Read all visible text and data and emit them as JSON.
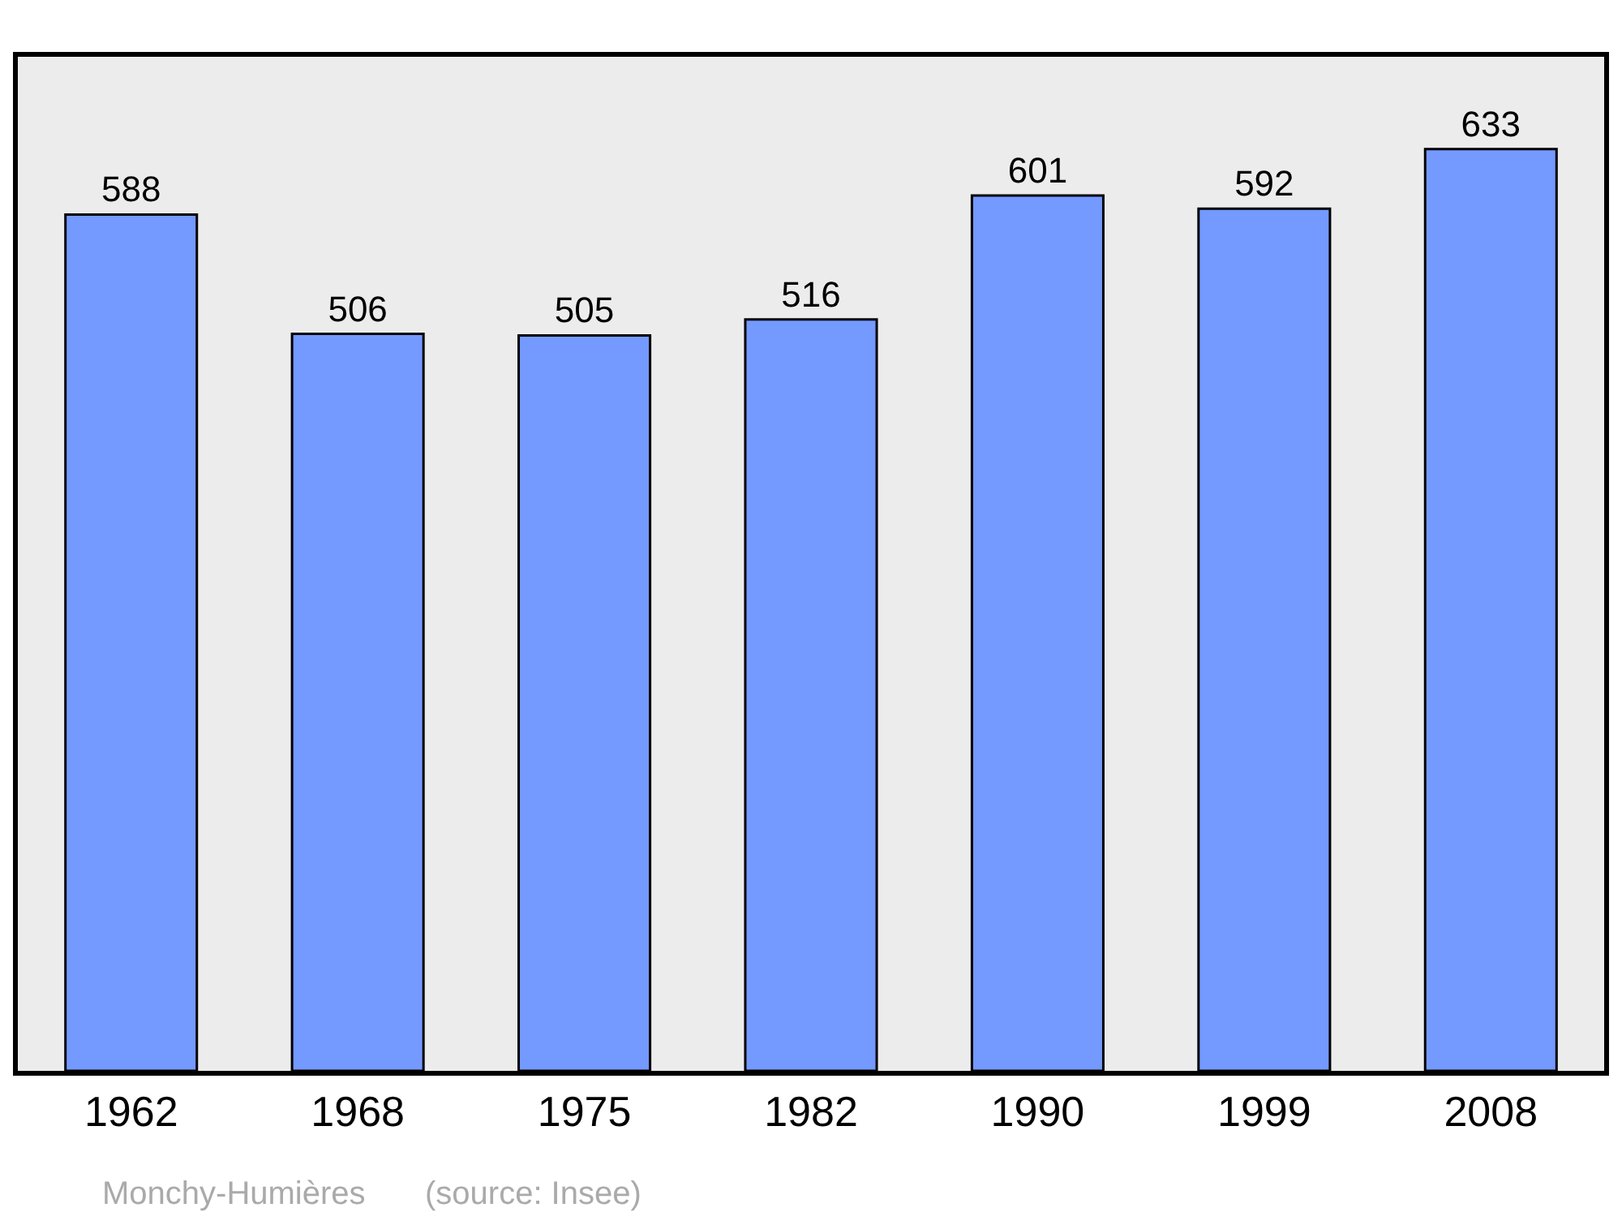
{
  "chart_data": {
    "type": "bar",
    "categories": [
      "1962",
      "1968",
      "1975",
      "1982",
      "1990",
      "1999",
      "2008"
    ],
    "values": [
      588,
      506,
      505,
      516,
      601,
      592,
      633
    ],
    "color": "#7499ff",
    "data_labels": true,
    "annotations": [
      "Monchy-Humières",
      "(source: Insee)"
    ]
  }
}
